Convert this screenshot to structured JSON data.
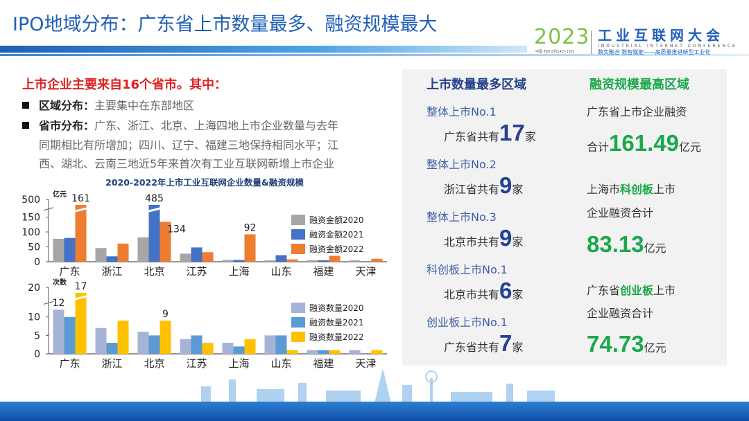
{
  "header": {
    "title": "IPO地域分布：广东省上市数量最多、融资规模最大",
    "logo": {
      "year": "2023",
      "name": "工业互联网大会",
      "english": "INDUSTRIAL INTERNET CONFERENCE",
      "slogan": "数实融合  数智赋能——高质量推进新型工业化",
      "date": "中国·苏州  8月14日-15日"
    }
  },
  "summary": {
    "lead": "上市企业主要来自16个省市。其中：",
    "bullets": [
      {
        "label": "区域分布：",
        "text": "主要集中在东部地区"
      },
      {
        "label": "省市分布：",
        "text": "广东、浙江、北京、上海四地上市企业数量与去年",
        "line2": "同期相比有所增加；四川、辽宁、福建三地保持相同水平；江",
        "line3": "西、湖北、云南三地近5年来首次有工业互联网新增上市企业"
      }
    ]
  },
  "panel": {
    "left_title": "上市数量最多区域",
    "right_title": "融资规模最高区域",
    "left": [
      {
        "label": "整体上市No.1",
        "pre": "广东省共有",
        "num": "17",
        "unit": "家"
      },
      {
        "label": "整体上市No.2",
        "pre": "浙江省共有",
        "num": "9",
        "unit": "家"
      },
      {
        "label": "整体上市No.3",
        "pre": "北京市共有",
        "num": "9",
        "unit": "家"
      },
      {
        "label": "科创板上市No.1",
        "pre": "北京市共有",
        "num": "6",
        "unit": "家"
      },
      {
        "label": "创业板上市No.1",
        "pre": "广东省共有",
        "num": "7",
        "unit": "家"
      }
    ],
    "right": [
      {
        "l1": "广东省上市企业融资",
        "l2pre": "合计",
        "num": "161.49",
        "unit": "亿元"
      },
      {
        "l1a": "上海市",
        "l1b": "科创板",
        "l1c": "上市",
        "l2": "企业融资合计",
        "num": "83.13",
        "unit": "亿元"
      },
      {
        "l1a": "广东省",
        "l1b": "创业板",
        "l1c": "上市",
        "l2": "企业融资合计",
        "num": "74.73",
        "unit": "亿元"
      }
    ]
  },
  "watermark": "2023工业互联网大会",
  "chart_data": [
    {
      "type": "bar",
      "title": "2020-2022年上市工业互联网企业数量&融资规模",
      "ylabel": "亿元",
      "categories": [
        "广东",
        "浙江",
        "北京",
        "江苏",
        "上海",
        "山东",
        "福建",
        "天津"
      ],
      "yticks": [
        0,
        50,
        100,
        150,
        500
      ],
      "axis_break": true,
      "ylim": [
        0,
        150
      ],
      "legend": "right",
      "series": [
        {
          "name": "融资金额2020",
          "color": "#a6a6a6",
          "values": [
            77,
            46,
            82,
            27,
            6,
            3,
            5,
            2
          ]
        },
        {
          "name": "融资金额2021",
          "color": "#4472c4",
          "values": [
            80,
            18,
            485,
            48,
            6,
            22,
            5,
            0
          ]
        },
        {
          "name": "融资金额2022",
          "color": "#ed7d31",
          "values": [
            161,
            61,
            134,
            32,
            92,
            8,
            20,
            10
          ]
        }
      ],
      "data_labels": [
        {
          "category": "广东",
          "series": 2,
          "text": "161"
        },
        {
          "category": "北京",
          "series": 1,
          "text": "485"
        },
        {
          "category": "北京",
          "series": 2,
          "text": "134"
        },
        {
          "category": "上海",
          "series": 2,
          "text": "92"
        }
      ]
    },
    {
      "type": "bar",
      "ylabel": "次数",
      "categories": [
        "广东",
        "浙江",
        "北京",
        "江苏",
        "上海",
        "山东",
        "福建",
        "天津"
      ],
      "yticks": [
        0,
        5,
        10,
        20
      ],
      "axis_break": true,
      "ylim": [
        0,
        13
      ],
      "legend": "right",
      "series": [
        {
          "name": "融资数量2020",
          "color": "#a5b4d6",
          "values": [
            12,
            7,
            6,
            4,
            3,
            5,
            1,
            1
          ]
        },
        {
          "name": "融资数量2021",
          "color": "#5b9bd5",
          "values": [
            10,
            3,
            5,
            5,
            2,
            5,
            1,
            0
          ]
        },
        {
          "name": "融资数量2022",
          "color": "#ffc000",
          "values": [
            17,
            9,
            9,
            3,
            4,
            1,
            1,
            1
          ]
        }
      ],
      "data_labels": [
        {
          "category": "广东",
          "series": 0,
          "text": "12"
        },
        {
          "category": "广东",
          "series": 2,
          "text": "17"
        },
        {
          "category": "北京",
          "series": 2,
          "text": "9"
        }
      ]
    }
  ]
}
